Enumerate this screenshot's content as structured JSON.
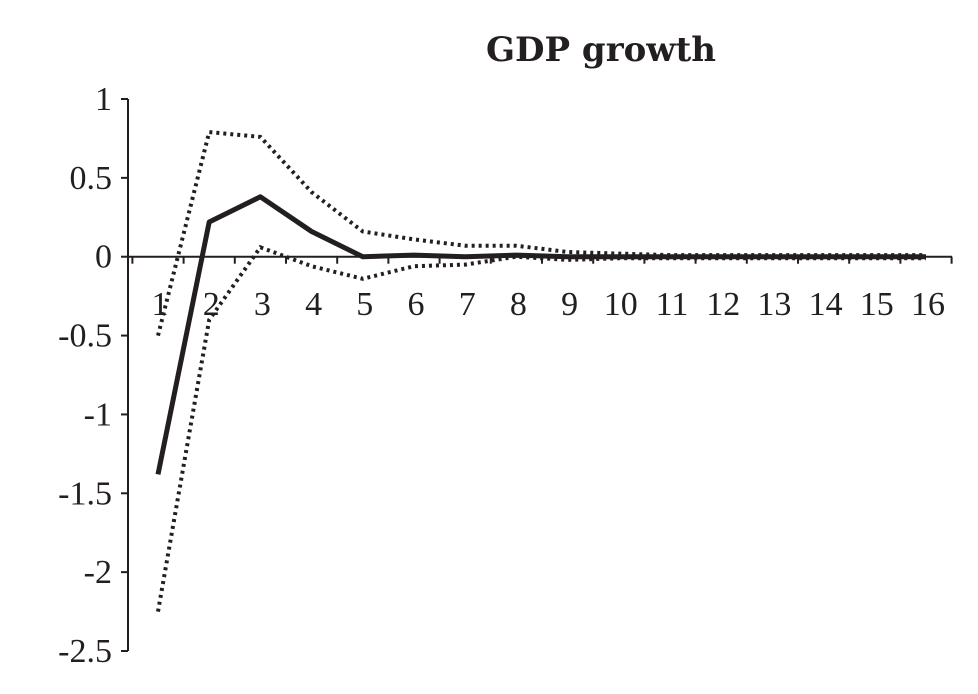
{
  "chart_data": {
    "type": "line",
    "title": "GDP growth",
    "xlabel": "",
    "ylabel": "",
    "x": [
      1,
      2,
      3,
      4,
      5,
      6,
      7,
      8,
      9,
      10,
      11,
      12,
      13,
      14,
      15,
      16
    ],
    "x_tick_labels": [
      "1",
      "2",
      "3",
      "4",
      "5",
      "6",
      "7",
      "8",
      "9",
      "10",
      "11",
      "12",
      "13",
      "14",
      "15",
      "16"
    ],
    "y_tick_values": [
      1,
      0.5,
      0,
      -0.5,
      -1,
      -1.5,
      -2,
      -2.5
    ],
    "y_tick_labels": [
      "1",
      "0.5",
      "0",
      "-0.5",
      "-1",
      "-1.5",
      "-2",
      "-2.5"
    ],
    "ylim": [
      -2.5,
      1
    ],
    "grid": false,
    "legend": "none",
    "series": [
      {
        "style": "solid",
        "values": [
          -1.38,
          0.22,
          0.38,
          0.16,
          0.0,
          0.01,
          0.0,
          0.01,
          0.0,
          0.0,
          0.0,
          0.0,
          0.0,
          0.0,
          0.0,
          0.0
        ]
      },
      {
        "style": "dotted",
        "values": [
          -0.5,
          0.79,
          0.76,
          0.41,
          0.16,
          0.11,
          0.07,
          0.07,
          0.03,
          0.02,
          0.01,
          0.01,
          0.01,
          0.01,
          0.01,
          0.01
        ]
      },
      {
        "style": "dotted",
        "values": [
          -2.25,
          -0.4,
          0.06,
          -0.06,
          -0.14,
          -0.06,
          -0.05,
          0.0,
          -0.02,
          -0.01,
          -0.01,
          -0.01,
          -0.01,
          -0.01,
          -0.01,
          -0.01
        ]
      }
    ]
  }
}
